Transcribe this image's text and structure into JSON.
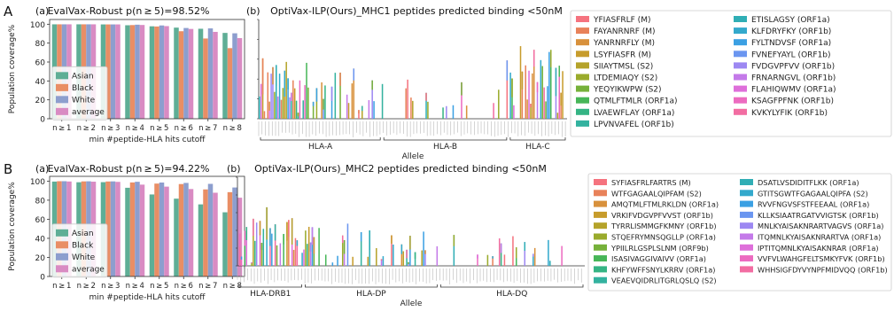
{
  "panels": [
    {
      "label": "A",
      "coverage": {
        "sub_label": "(a)",
        "title": "EvalVax-Robust p(n ≥ 5)=98.52%",
        "ylabel": "Population coverage%",
        "xlabel": "min #peptide-HLA hits cutoff",
        "categories": [
          "n ≥ 1",
          "n ≥ 2",
          "n ≥ 3",
          "n ≥ 4",
          "n ≥ 5",
          "n ≥ 6",
          "n ≥ 7",
          "n ≥ 8"
        ],
        "yticks": [
          "0",
          "20",
          "40",
          "60",
          "80",
          "100"
        ],
        "ylim": [
          0,
          105
        ],
        "legend": [
          "Asian",
          "Black",
          "White",
          "average"
        ],
        "colors": [
          "#5fae96",
          "#e98e65",
          "#8d9ece",
          "#d98bc3"
        ],
        "series": [
          {
            "name": "Asian",
            "values": [
              99.9,
              99.9,
              99.8,
              98.9,
              97.8,
              96.4,
              95.2,
              90.8
            ]
          },
          {
            "name": "Black",
            "values": [
              99.9,
              99.9,
              99.8,
              99.1,
              97.6,
              92.6,
              84.9,
              74.7
            ]
          },
          {
            "name": "White",
            "values": [
              99.9,
              99.9,
              99.8,
              99.5,
              98.7,
              96.0,
              95.6,
              90.4
            ]
          },
          {
            "name": "average",
            "values": [
              99.9,
              99.9,
              99.8,
              99.2,
              98.0,
              95.0,
              91.9,
              85.3
            ]
          }
        ]
      },
      "binding": {
        "sub_label": "(b)",
        "title": "OptiVax-ILP(Ours)_MHC1 peptides predicted binding <50nM",
        "xlabel": "Allele",
        "groups": [
          "HLA-A",
          "HLA-B",
          "HLA-C"
        ],
        "legend_col1": [
          "YFIASFRLF (M)",
          "FAYANRNRF (M)",
          "YANRNRFLY (M)",
          "LSYFIASFR (M)",
          "SIIAYTMSL (S2)",
          "LTDEMIAQY (S2)",
          "YEQYIKWPW (S2)",
          "QTMLFTMLR (ORF1a)",
          "LVAEWFLAY (ORF1a)",
          "LPVNVAFEL (ORF1b)"
        ],
        "legend_col2": [
          "ETISLAGSY (ORF1a)",
          "KLFDRYFKY (ORF1b)",
          "FYLTNDVSF (ORF1a)",
          "FVNEFYAYL (ORF1b)",
          "FVDGVPFVV (ORF1b)",
          "FRNARNGVL (ORF1b)",
          "FLAHIQWMV (ORF1a)",
          "KSAGFPFNK (ORF1b)",
          "KVKYLYFIK (ORF1b)"
        ],
        "legend_colors": [
          "#f5737f",
          "#e8825a",
          "#d8913c",
          "#c79c2c",
          "#b5a32a",
          "#9aab2c",
          "#76b13a",
          "#47b658",
          "#35b484",
          "#33b29f",
          "#30aeb5",
          "#33a9cc",
          "#3ba0e3",
          "#6b96f0",
          "#9d88f2",
          "#c47ae9",
          "#de6fda",
          "#ec6bc0",
          "#f26da2"
        ]
      }
    },
    {
      "label": "B",
      "coverage": {
        "sub_label": "(a)",
        "title": "EvalVax-Robust p(n ≥ 5)=94.22%",
        "ylabel": "Population coverage%",
        "xlabel": "min #peptide-HLA hits cutoff",
        "categories": [
          "n ≥ 1",
          "n ≥ 2",
          "n ≥ 3",
          "n ≥ 4",
          "n ≥ 5",
          "n ≥ 6",
          "n ≥ 7",
          "n ≥ 8"
        ],
        "yticks": [
          "0",
          "20",
          "40",
          "60",
          "80",
          "100"
        ],
        "ylim": [
          0,
          105
        ],
        "legend": [
          "Asian",
          "Black",
          "White",
          "average"
        ],
        "colors": [
          "#5fae96",
          "#e98e65",
          "#8d9ece",
          "#d98bc3"
        ],
        "series": [
          {
            "name": "Asian",
            "values": [
              99.5,
              98.8,
              98.9,
              93.0,
              86.0,
              81.6,
              75.6,
              67.3
            ]
          },
          {
            "name": "Black",
            "values": [
              99.9,
              99.7,
              99.6,
              98.6,
              97.4,
              96.9,
              91.3,
              88.4
            ]
          },
          {
            "name": "White",
            "values": [
              99.9,
              99.8,
              99.7,
              99.3,
              98.5,
              98.1,
              97.1,
              93.3
            ]
          },
          {
            "name": "average",
            "values": [
              99.6,
              99.4,
              99.2,
              96.3,
              94.2,
              91.7,
              87.8,
              82.6
            ]
          }
        ]
      },
      "binding": {
        "sub_label": "(b)",
        "title": "OptiVax-ILP(Ours)_MHC2 peptides predicted binding <50nM",
        "xlabel": "Allele",
        "groups": [
          "HLA-DRB1",
          "HLA-DP",
          "HLA-DQ"
        ],
        "legend_col1": [
          "SYFIASFRLFARTRS (M)",
          "WTFGAGAALQIPFAM (S2)",
          "AMQTMLFTMLRKLDN (ORF1a)",
          "VRKIFVDGVPFVVST (ORF1b)",
          "TYRRLISMMGFKMNY (ORF1b)",
          "STQEFRYMNSQGLLP (ORF1a)",
          "YPIILRLGSPLSLNM (ORF9b)",
          "ISASIVAGGIVAIVV (ORF1a)",
          "KHFYWFFSNYLKRRV (ORF1a)",
          "VEAEVQIDRLITGRLQSLQ (S2)"
        ],
        "legend_col2": [
          "DSATLVSDIDITFLKK (ORF1a)",
          "GTITSGWTFGAGAALQIPFA (S2)",
          "RVVFNGVSFSTFEEAAL (ORF1a)",
          "KLLKSIAATRGATVVIGTSK (ORF1b)",
          "MNLKYAISAKNRARTVAGVS (ORF1a)",
          "ITQMNLKYAISAKNRARTVA (ORF1a)",
          "IPTITQMNLKYAISAKNRAR (ORF1a)",
          "VVFVLWAHGFELTSMKYFVK (ORF1b)",
          "WHHSIGFDYVYNPFMIDVQQ (ORF1b)"
        ],
        "legend_colors": [
          "#f5737f",
          "#e8825a",
          "#d8913c",
          "#c79c2c",
          "#b5a32a",
          "#9aab2c",
          "#76b13a",
          "#47b658",
          "#35b484",
          "#33b29f",
          "#30aeb5",
          "#33a9cc",
          "#3ba0e3",
          "#6b96f0",
          "#9d88f2",
          "#c47ae9",
          "#de6fda",
          "#ec6bc0",
          "#f26da2"
        ]
      }
    }
  ]
}
